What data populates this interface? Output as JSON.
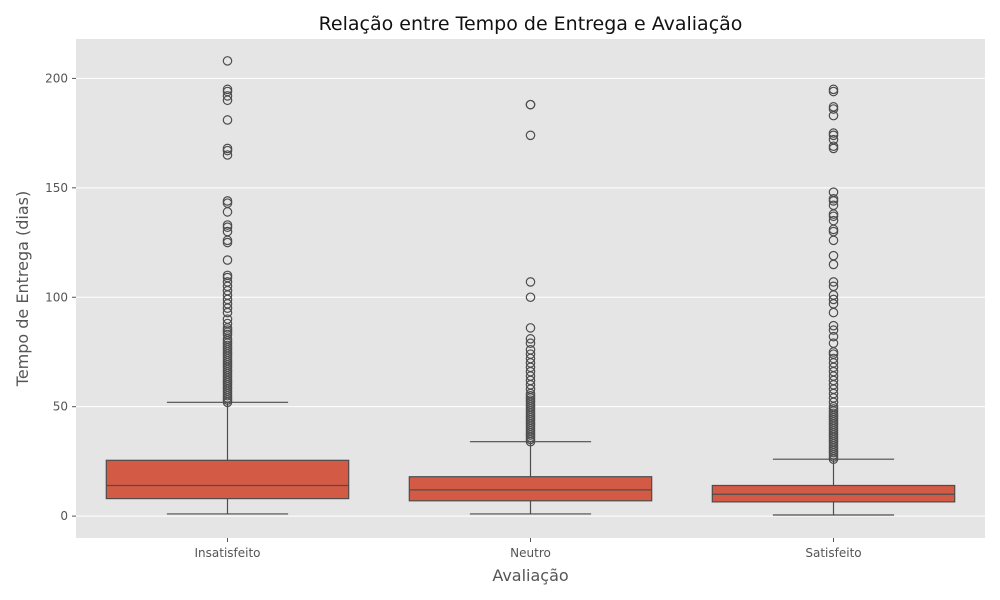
{
  "chart_data": {
    "type": "box",
    "title": "Relação entre Tempo de Entrega e Avaliação",
    "xlabel": "Avaliação",
    "ylabel": "Tempo de Entrega (dias)",
    "ylim": [
      -10,
      218
    ],
    "yticks": [
      0,
      50,
      100,
      150,
      200
    ],
    "grid": true,
    "background_color": "#e5e5e5",
    "box_color": "#d35a45",
    "line_color": "#4d4d4d",
    "categories": [
      "Insatisfeito",
      "Neutro",
      "Satisfeito"
    ],
    "boxes": [
      {
        "category": "Insatisfeito",
        "whisker_low": 1,
        "q1": 8,
        "median": 14,
        "q3": 25.5,
        "whisker_high": 52,
        "outliers": [
          52,
          53,
          54,
          55,
          56,
          57,
          58,
          59,
          60,
          61,
          62,
          63,
          64,
          65,
          66,
          67,
          68,
          69,
          70,
          71,
          72,
          73,
          74,
          75,
          76,
          77,
          78,
          79,
          80,
          81,
          83,
          84,
          85,
          86,
          88,
          90,
          93,
          95,
          97,
          99,
          101,
          103,
          105,
          107,
          109,
          110,
          117,
          125,
          126,
          130,
          132,
          133,
          139,
          143,
          144,
          165,
          167,
          168,
          181,
          190,
          192,
          194,
          195,
          208
        ]
      },
      {
        "category": "Neutro",
        "whisker_low": 1,
        "q1": 7,
        "median": 12,
        "q3": 18,
        "whisker_high": 34,
        "outliers": [
          34,
          35,
          36,
          37,
          38,
          39,
          40,
          41,
          42,
          43,
          44,
          45,
          46,
          47,
          48,
          49,
          50,
          51,
          52,
          53,
          54,
          55,
          56,
          58,
          60,
          62,
          64,
          66,
          68,
          70,
          72,
          74,
          76,
          79,
          81,
          86,
          100,
          107,
          174,
          188,
          188
        ]
      },
      {
        "category": "Satisfeito",
        "whisker_low": 0.5,
        "q1": 6.5,
        "median": 10,
        "q3": 14,
        "whisker_high": 26,
        "outliers": [
          26,
          27,
          28,
          29,
          30,
          31,
          32,
          33,
          34,
          35,
          36,
          37,
          38,
          39,
          40,
          41,
          42,
          43,
          44,
          45,
          46,
          47,
          48,
          49,
          50,
          52,
          54,
          56,
          58,
          60,
          62,
          64,
          66,
          68,
          70,
          72,
          74,
          75,
          79,
          82,
          85,
          87,
          93,
          97,
          99,
          101,
          105,
          107,
          115,
          119,
          126,
          130,
          131,
          135,
          137,
          138,
          142,
          144,
          145,
          148,
          168,
          169,
          172,
          174,
          175,
          183,
          186,
          187,
          194,
          195
        ]
      }
    ]
  }
}
